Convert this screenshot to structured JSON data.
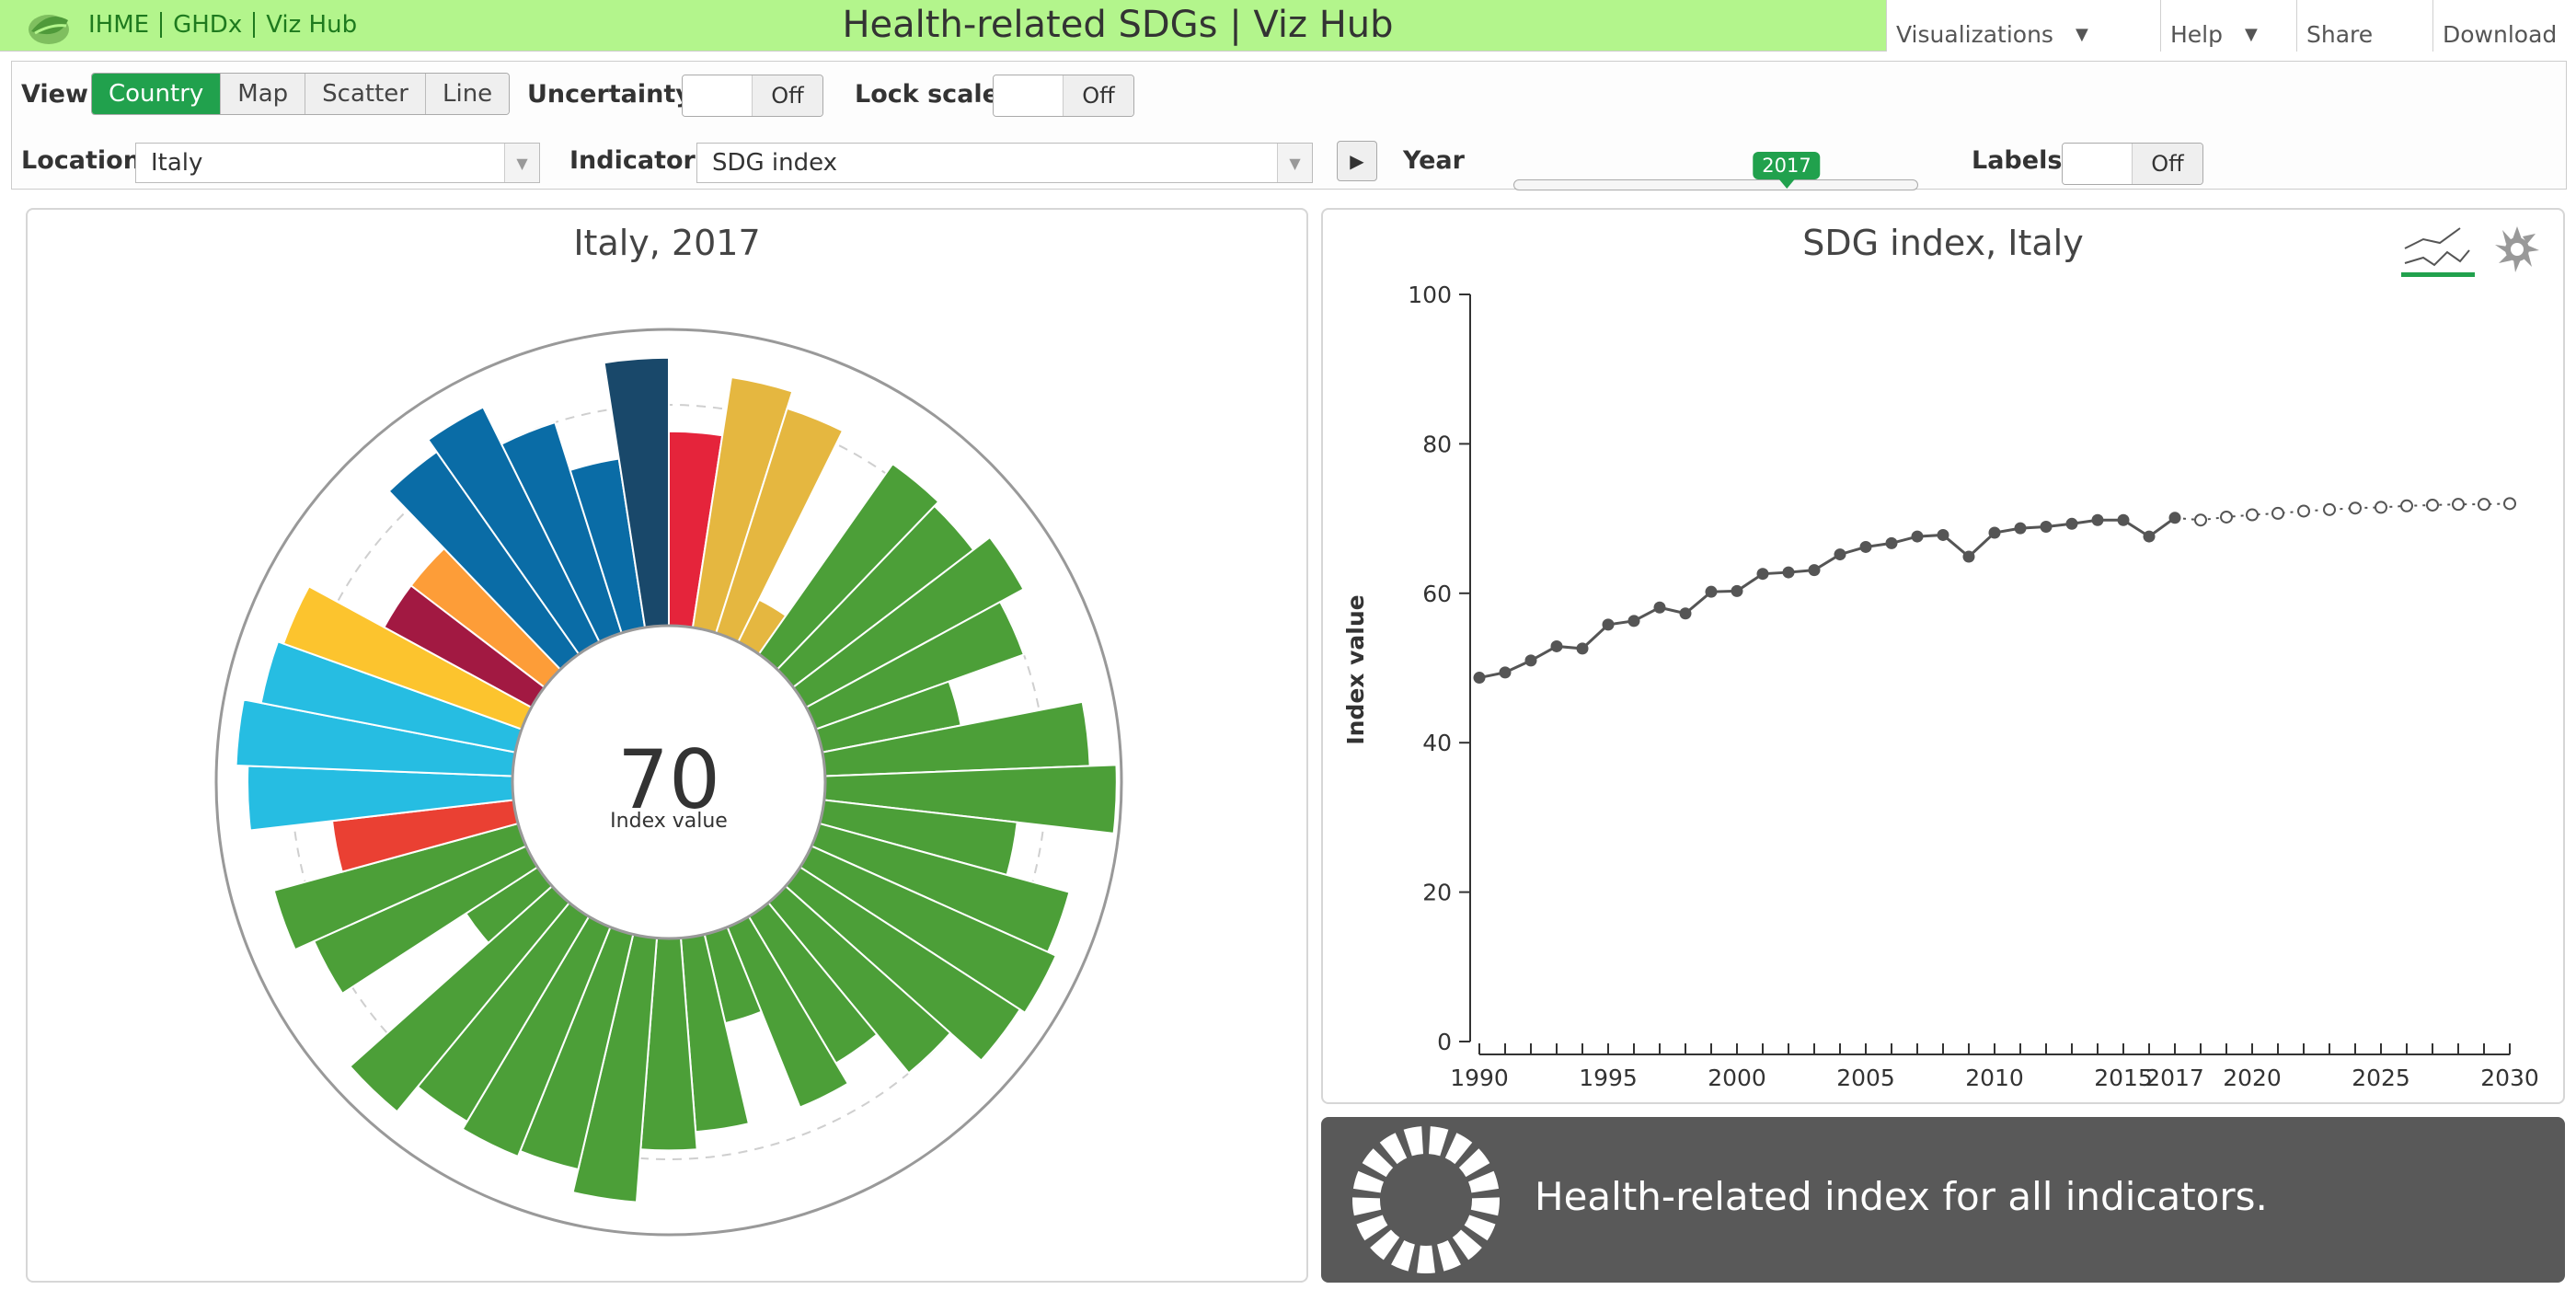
{
  "header": {
    "links": [
      "IHME",
      "GHDx",
      "Viz Hub"
    ],
    "title": "Health-related SDGs | Viz Hub",
    "nav": [
      {
        "label": "Visualizations",
        "caret": "▼"
      },
      {
        "label": "Help",
        "caret": "▼"
      },
      {
        "label": "Share"
      },
      {
        "label": "Download"
      }
    ],
    "colors": {
      "bar": "#b3f58c",
      "link": "#1e7a1e"
    }
  },
  "controls": {
    "view": {
      "label": "View",
      "options": [
        "Country",
        "Map",
        "Scatter",
        "Line"
      ],
      "selected": "Country"
    },
    "uncertainty": {
      "label": "Uncertainty",
      "state": "Off"
    },
    "lock_scale": {
      "label": "Lock scale",
      "state": "Off"
    },
    "location": {
      "label": "Location",
      "value": "Italy"
    },
    "indicator": {
      "label": "Indicator",
      "value": "SDG index"
    },
    "play_icon": "play-icon",
    "year": {
      "label": "Year",
      "value": "2017",
      "min": 1990,
      "max": 2030,
      "fraction": 0.675
    },
    "labels": {
      "label": "Labels",
      "state": "Off"
    },
    "accent_color": "#21a14d"
  },
  "left_panel": {
    "title": "Italy, 2017",
    "center_value": "70",
    "center_label": "Index value"
  },
  "right_panel": {
    "title": "SDG index, Italy",
    "icons": [
      "line-chart-icon",
      "radial-chart-icon"
    ]
  },
  "info": {
    "text": "Health-related index for all indicators.",
    "icon": "sdg-wheel-icon"
  },
  "chart_data": [
    {
      "type": "radial-bar",
      "title": "Italy, 2017",
      "center_value": 70,
      "center_label": "Index value",
      "range": [
        0,
        100
      ],
      "bars": [
        {
          "value": 66,
          "color": "#e5243b"
        },
        {
          "value": 86,
          "color": "#e5b740"
        },
        {
          "value": 80,
          "color": "#e5b740"
        },
        {
          "value": 16,
          "color": "#e5b740"
        },
        {
          "value": 79,
          "color": "#4c9f38"
        },
        {
          "value": 77,
          "color": "#4c9f38"
        },
        {
          "value": 84,
          "color": "#4c9f38"
        },
        {
          "value": 75,
          "color": "#4c9f38"
        },
        {
          "value": 48,
          "color": "#4c9f38"
        },
        {
          "value": 90,
          "color": "#4c9f38"
        },
        {
          "value": 99,
          "color": "#4c9f38"
        },
        {
          "value": 66,
          "color": "#4c9f38"
        },
        {
          "value": 88,
          "color": "#4c9f38"
        },
        {
          "value": 91,
          "color": "#4c9f38"
        },
        {
          "value": 89,
          "color": "#4c9f38"
        },
        {
          "value": 75,
          "color": "#4c9f38"
        },
        {
          "value": 58,
          "color": "#4c9f38"
        },
        {
          "value": 66,
          "color": "#4c9f38"
        },
        {
          "value": 31,
          "color": "#4c9f38"
        },
        {
          "value": 66,
          "color": "#4c9f38"
        },
        {
          "value": 72,
          "color": "#4c9f38"
        },
        {
          "value": 90,
          "color": "#4c9f38"
        },
        {
          "value": 82,
          "color": "#4c9f38"
        },
        {
          "value": 84,
          "color": "#4c9f38"
        },
        {
          "value": 81,
          "color": "#4c9f38"
        },
        {
          "value": 92,
          "color": "#4c9f38"
        },
        {
          "value": 29,
          "color": "#4c9f38"
        },
        {
          "value": 79,
          "color": "#4c9f38"
        },
        {
          "value": 86,
          "color": "#4c9f38"
        },
        {
          "value": 62,
          "color": "#ea4033"
        },
        {
          "value": 90,
          "color": "#26bde2"
        },
        {
          "value": 94,
          "color": "#26bde2"
        },
        {
          "value": 88,
          "color": "#26bde2"
        },
        {
          "value": 86,
          "color": "#fcc42e"
        },
        {
          "value": 57,
          "color": "#a21942"
        },
        {
          "value": 57,
          "color": "#fd9d38"
        },
        {
          "value": 84,
          "color": "#0a6ca6"
        },
        {
          "value": 89,
          "color": "#0a6ca6"
        },
        {
          "value": 75,
          "color": "#0a6ca6"
        },
        {
          "value": 58,
          "color": "#0a6ca6"
        },
        {
          "value": 91,
          "color": "#19486a"
        }
      ]
    },
    {
      "type": "line",
      "title": "SDG index, Italy",
      "xlabel": "",
      "ylabel": "Index value",
      "ylim": [
        0,
        100
      ],
      "xlim": [
        1990,
        2030
      ],
      "yticks": [
        0,
        20,
        40,
        60,
        80,
        100
      ],
      "xticks": [
        1990,
        1995,
        2000,
        2005,
        2010,
        2015,
        2017,
        2020,
        2025,
        2030
      ],
      "series": [
        {
          "style": "solid",
          "x": [
            1990,
            1991,
            1992,
            1993,
            1994,
            1995,
            1996,
            1997,
            1998,
            1999,
            2000,
            2001,
            2002,
            2003,
            2004,
            2005,
            2006,
            2007,
            2008,
            2009,
            2010,
            2011,
            2012,
            2013,
            2014,
            2015,
            2016,
            2017
          ],
          "values": [
            48.7,
            49.4,
            51,
            52.9,
            52.6,
            55.8,
            56.3,
            58.1,
            57.3,
            60.2,
            60.3,
            62.6,
            62.8,
            63.1,
            65.2,
            66.2,
            66.7,
            67.6,
            67.8,
            64.9,
            68.1,
            68.7,
            68.9,
            69.3,
            69.8,
            69.8,
            67.6,
            70.1
          ]
        },
        {
          "style": "dotted",
          "x": [
            2017,
            2018,
            2019,
            2020,
            2021,
            2022,
            2023,
            2024,
            2025,
            2026,
            2027,
            2028,
            2029,
            2030
          ],
          "values": [
            70.1,
            69.8,
            70.2,
            70.5,
            70.7,
            71,
            71.2,
            71.4,
            71.5,
            71.7,
            71.8,
            71.9,
            71.9,
            72
          ]
        }
      ]
    }
  ]
}
